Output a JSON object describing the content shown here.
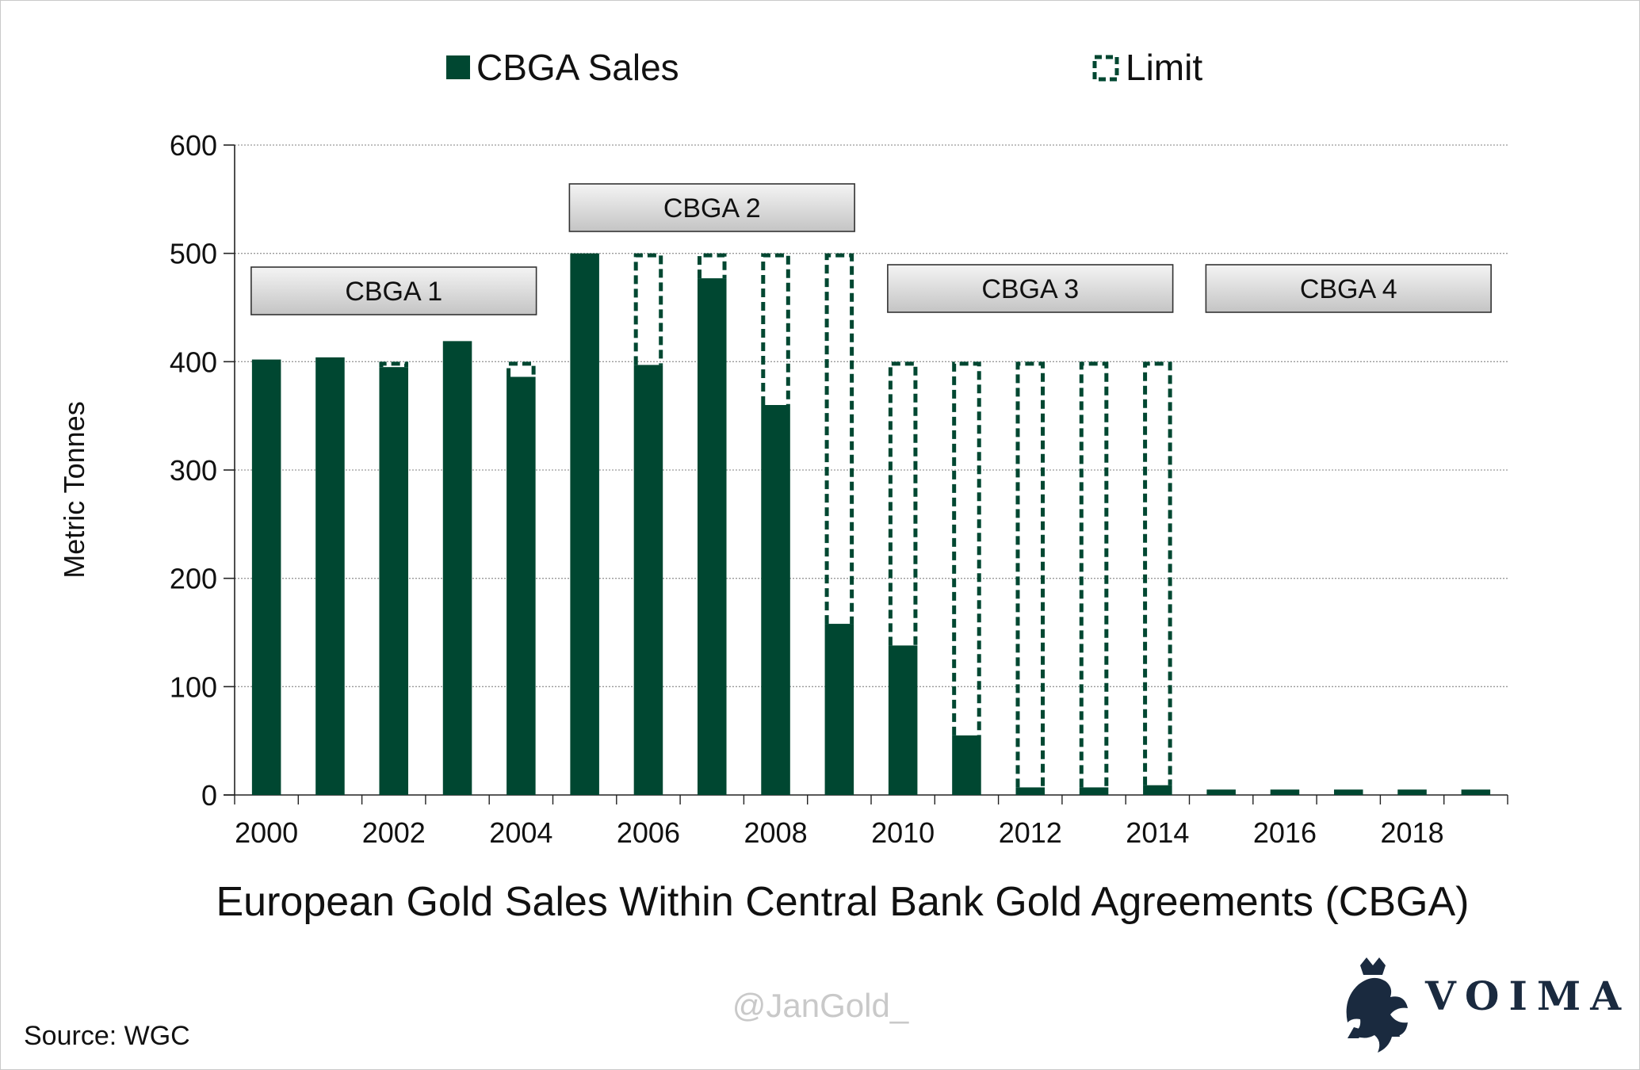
{
  "chart_data": {
    "type": "bar",
    "title": "European Gold Sales Within Central Bank Gold Agreements (CBGA)",
    "xlabel": "",
    "ylabel": "Metric Tonnes",
    "ylim": [
      0,
      600
    ],
    "yticks": [
      0,
      100,
      200,
      300,
      400,
      500,
      600
    ],
    "grid": true,
    "legend_position": "top",
    "categories": [
      2000,
      2001,
      2002,
      2003,
      2004,
      2005,
      2006,
      2007,
      2008,
      2009,
      2010,
      2011,
      2012,
      2013,
      2014,
      2015,
      2016,
      2017,
      2018,
      2019
    ],
    "xtick_labels": [
      "2000",
      "2002",
      "2004",
      "2006",
      "2008",
      "2010",
      "2012",
      "2014",
      "2016",
      "2018"
    ],
    "series": [
      {
        "name": "CBGA Sales",
        "style": "solid",
        "color": "#004731",
        "values": [
          402,
          404,
          395,
          419,
          386,
          500,
          397,
          477,
          360,
          158,
          138,
          55,
          7,
          7,
          9,
          5,
          5,
          5,
          5,
          5
        ]
      },
      {
        "name": "Limit",
        "style": "dashed-outline",
        "color": "#004731",
        "values": [
          400,
          400,
          400,
          400,
          400,
          500,
          500,
          500,
          500,
          500,
          400,
          400,
          400,
          400,
          400,
          null,
          null,
          null,
          null,
          null
        ]
      }
    ],
    "annotations": [
      {
        "label": "CBGA 1",
        "from": 2000,
        "to": 2004
      },
      {
        "label": "CBGA 2",
        "from": 2005,
        "to": 2009
      },
      {
        "label": "CBGA 3",
        "from": 2010,
        "to": 2014
      },
      {
        "label": "CBGA 4",
        "from": 2015,
        "to": 2019
      }
    ]
  },
  "watermark": "@JanGold_",
  "source": "Source: WGC",
  "brand": {
    "name": "VOIMA",
    "logo_icon": "heraldic-lion-icon"
  }
}
